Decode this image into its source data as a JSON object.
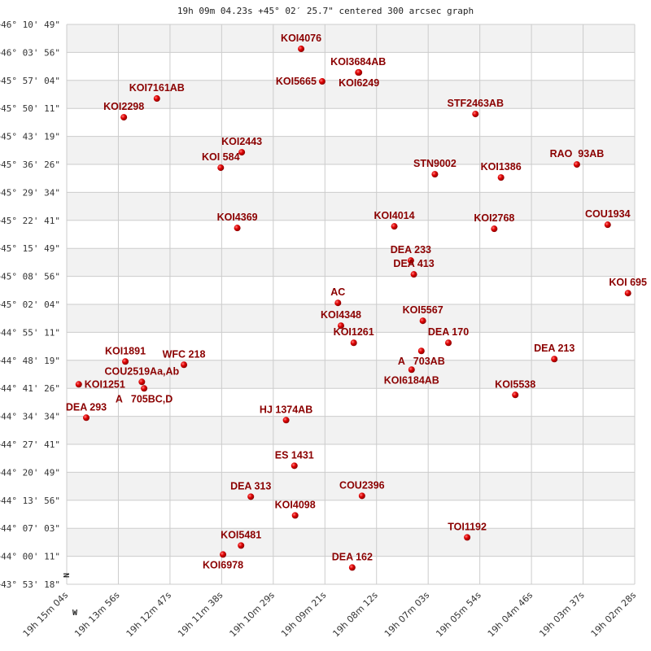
{
  "chart_data": {
    "type": "scatter",
    "title": "19h 09m 04.23s +45° 02′ 25.7\" centered 300 arcsec graph",
    "x_ticks": [
      "19h 15m 04s",
      "19h 13m 56s",
      "19h 12m 47s",
      "19h 11m 38s",
      "19h 10m 29s",
      "19h 09m 21s",
      "19h 08m 12s",
      "19h 07m 03s",
      "19h 05m 54s",
      "19h 04m 46s",
      "19h 03m 37s",
      "19h 02m 28s"
    ],
    "y_ticks": [
      "+46° 10' 49\"",
      "+46° 03' 56\"",
      "+45° 57' 04\"",
      "+45° 50' 11\"",
      "+45° 43' 19\"",
      "+45° 36' 26\"",
      "+45° 29' 34\"",
      "+45° 22' 41\"",
      "+45° 15' 49\"",
      "+45° 08' 56\"",
      "+45° 02' 04\"",
      "+44° 55' 11\"",
      "+44° 48' 19\"",
      "+44° 41' 26\"",
      "+44° 34' 34\"",
      "+44° 27' 41\"",
      "+44° 20' 49\"",
      "+44° 13' 56\"",
      "+44° 07' 03\"",
      "+44° 00' 11\"",
      "+43° 53' 18\""
    ],
    "xlim": [
      "19h 15m 04s",
      "19h 02m 28s"
    ],
    "ylim": [
      "+43° 53' 18\"",
      "+46° 10' 49\""
    ],
    "x_reversed": true,
    "grid": true,
    "direction_labels": {
      "north": "N",
      "west": "W"
    },
    "colors": {
      "point": "#dd0000",
      "label": "#8b0000",
      "band": "#f2f2f2",
      "grid": "#cccccc"
    },
    "points": [
      {
        "name": "KOI4076",
        "ra": "19h 09m 52s",
        "dec": "+46° 04' 49\""
      },
      {
        "name": "KOI3684AB",
        "ra": "19h 08m 36s",
        "dec": "+45° 59' 01\""
      },
      {
        "name": "KOI6249",
        "ra": "19h 08m 35s",
        "dec": "+45° 59' 01\""
      },
      {
        "name": "KOI5665",
        "ra": "19h 09m 24s",
        "dec": "+45° 56' 49\""
      },
      {
        "name": "KOI7161AB",
        "ra": "19h 13m 04s",
        "dec": "+45° 52' 37\""
      },
      {
        "name": "KOI2298",
        "ra": "19h 13m 48s",
        "dec": "+45° 48' 01\""
      },
      {
        "name": "STF2463AB",
        "ra": "19h 06m 00s",
        "dec": "+45° 48' 49\""
      },
      {
        "name": "KOI2443",
        "ra": "19h 11m 11s",
        "dec": "+45° 39' 25\""
      },
      {
        "name": "KOI 584",
        "ra": "19h 11m 39s",
        "dec": "+45° 35' 37\""
      },
      {
        "name": "STN9002",
        "ra": "19h 06m 54s",
        "dec": "+45° 34' 01\""
      },
      {
        "name": "KOI1386",
        "ra": "19h 05m 26s",
        "dec": "+45° 33' 13\""
      },
      {
        "name": "RAO  93AB",
        "ra": "19h 03m 45s",
        "dec": "+45° 36' 25\""
      },
      {
        "name": "KOI4369",
        "ra": "19h 11m 17s",
        "dec": "+45° 20' 49\""
      },
      {
        "name": "KOI4014",
        "ra": "19h 07m 48s",
        "dec": "+45° 21' 13\""
      },
      {
        "name": "KOI2768",
        "ra": "19h 05m 35s",
        "dec": "+45° 20' 37\""
      },
      {
        "name": "COU1934",
        "ra": "19h 03m 04s",
        "dec": "+45° 21' 37\""
      },
      {
        "name": "DEA 233",
        "ra": "19h 07m 26s",
        "dec": "+45° 12' 49\""
      },
      {
        "name": "DEA 413",
        "ra": "19h 07m 22s",
        "dec": "+45° 09' 25\""
      },
      {
        "name": "KOI 695",
        "ra": "19h 02m 37s",
        "dec": "+45° 04' 49\""
      },
      {
        "name": "AC",
        "ra": "19h 09m 03s",
        "dec": "+45° 02' 25\""
      },
      {
        "name": "KOI4348",
        "ra": "19h 08m 59s",
        "dec": "+44° 56' 49\""
      },
      {
        "name": "KOI1261",
        "ra": "19h 08m 42s",
        "dec": "+44° 52' 37\""
      },
      {
        "name": "KOI5567",
        "ra": "19h 07m 10s",
        "dec": "+44° 58' 01\""
      },
      {
        "name": "DEA 170",
        "ra": "19h 06m 36s",
        "dec": "+44° 52' 37\""
      },
      {
        "name": "A   703AB",
        "ra": "19h 07m 12s",
        "dec": "+44° 50' 37\""
      },
      {
        "name": "KOI6184AB",
        "ra": "19h 07m 25s",
        "dec": "+44° 46' 01\""
      },
      {
        "name": "KOI1891",
        "ra": "19h 13m 46s",
        "dec": "+44° 48' 01\""
      },
      {
        "name": "WFC 218",
        "ra": "19h 12m 28s",
        "dec": "+44° 47' 13\""
      },
      {
        "name": "COU2519Aa,Ab",
        "ra": "19h 13m 24s",
        "dec": "+44° 43' 01\""
      },
      {
        "name": "A   705BC,D",
        "ra": "19h 13m 21s",
        "dec": "+44° 41' 25\""
      },
      {
        "name": "KOI1251",
        "ra": "19h 14m 48s",
        "dec": "+44° 42' 25\""
      },
      {
        "name": "DEA 293",
        "ra": "19h 14m 38s",
        "dec": "+44° 34' 13\""
      },
      {
        "name": "DEA 213",
        "ra": "19h 04m 15s",
        "dec": "+44° 48' 37\""
      },
      {
        "name": "KOI5538",
        "ra": "19h 05m 07s",
        "dec": "+44° 39' 49\""
      },
      {
        "name": "HJ 1374AB",
        "ra": "19h 10m 12s",
        "dec": "+44° 33' 37\""
      },
      {
        "name": "ES 1431",
        "ra": "19h 10m 01s",
        "dec": "+44° 22' 25\""
      },
      {
        "name": "DEA 313",
        "ra": "19h 10m 59s",
        "dec": "+44° 14' 49\""
      },
      {
        "name": "COU2396",
        "ra": "19h 08m 31s",
        "dec": "+44° 15' 01\""
      },
      {
        "name": "KOI4098",
        "ra": "19h 10m 00s",
        "dec": "+44° 10' 13\""
      },
      {
        "name": "TOI1192",
        "ra": "19h 06m 11s",
        "dec": "+44° 04' 49\""
      },
      {
        "name": "KOI5481",
        "ra": "19h 11m 12s",
        "dec": "+44° 02' 49\""
      },
      {
        "name": "KOI6978",
        "ra": "19h 11m 36s",
        "dec": "+44° 00' 37\""
      },
      {
        "name": "DEA 162",
        "ra": "19h 08m 44s",
        "dec": "+43° 57' 25\""
      }
    ]
  }
}
